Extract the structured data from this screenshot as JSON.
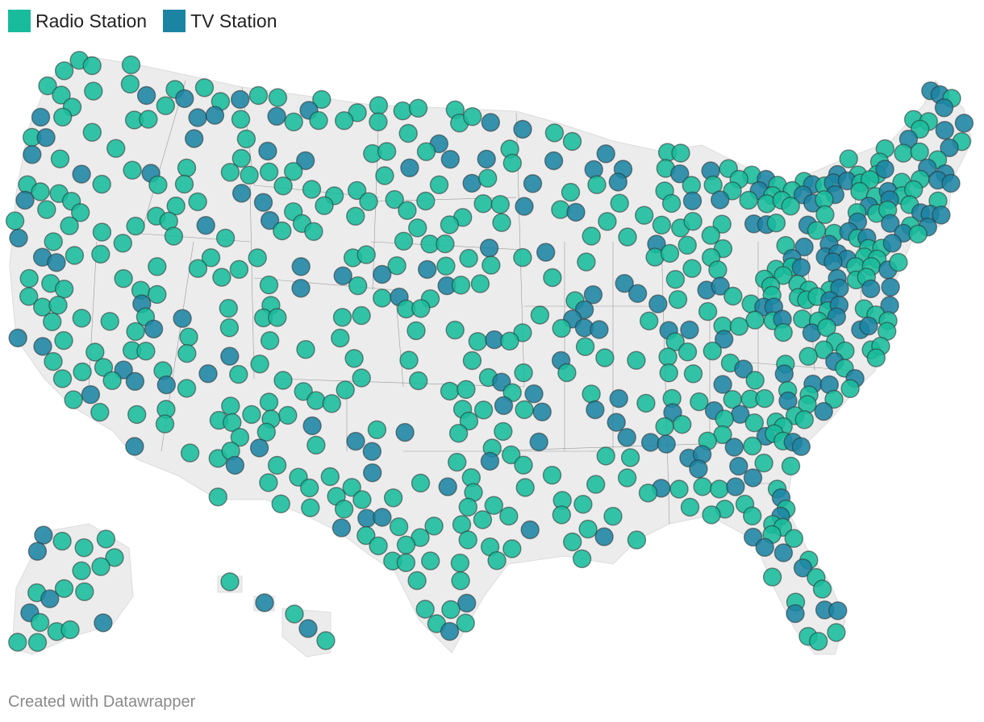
{
  "legend": {
    "radio": {
      "label": "Radio Station",
      "color": "#18bc9c"
    },
    "tv": {
      "label": "TV Station",
      "color": "#1b84a3"
    }
  },
  "map": {
    "land_color": "#ececec",
    "border_color": "#9a9a9a",
    "marker_stroke": "#2b2b2b"
  },
  "footer": {
    "credit": "Created with Datawrapper"
  }
}
